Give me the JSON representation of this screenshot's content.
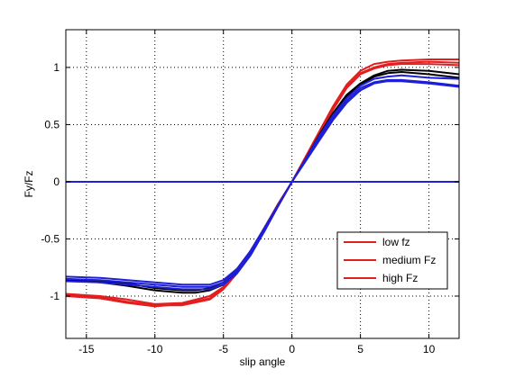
{
  "chart_data": {
    "type": "line",
    "title": "",
    "xlabel": "slip angle",
    "ylabel": "Fy/Fz",
    "xlim": [
      -16.5,
      12.2
    ],
    "ylim": [
      -1.37,
      1.33
    ],
    "xticks": [
      -15,
      -10,
      -5,
      0,
      5,
      10
    ],
    "yticks": [
      -1,
      -0.5,
      0,
      0.5,
      1
    ],
    "xtick_labels": [
      "-15",
      "-10",
      "-5",
      "0",
      "5",
      "10"
    ],
    "ytick_labels": [
      "-1",
      "-0.5",
      "0",
      "0.5",
      "1"
    ],
    "grid": true,
    "legend_position": "bottom-right",
    "legend": [
      {
        "label": "low fz",
        "color": "#e21e1e"
      },
      {
        "label": "medium Fz",
        "color": "#e21e1e"
      },
      {
        "label": "high Fz",
        "color": "#e21e1e"
      }
    ],
    "series": [
      {
        "color": "#e21e1e",
        "x": [
          -16.5,
          -14,
          -12,
          -10,
          -8,
          -6,
          -5,
          -4,
          -3,
          -2,
          -1,
          0,
          1,
          2,
          3,
          4,
          5,
          6,
          7,
          8,
          10,
          12.2
        ],
        "y": [
          -0.99,
          -1.01,
          -1.05,
          -1.08,
          -1.08,
          -1.03,
          -0.94,
          -0.8,
          -0.62,
          -0.42,
          -0.2,
          0.0,
          0.22,
          0.44,
          0.66,
          0.85,
          0.97,
          1.03,
          1.05,
          1.06,
          1.07,
          1.07
        ]
      },
      {
        "color": "#e21e1e",
        "x": [
          -16.5,
          -14,
          -12,
          -10,
          -8,
          -6,
          -5,
          -4,
          -3,
          -2,
          -1,
          0,
          1,
          2,
          3,
          4,
          5,
          6,
          7,
          8,
          10,
          12.2
        ],
        "y": [
          -1.0,
          -1.02,
          -1.06,
          -1.09,
          -1.07,
          -1.02,
          -0.93,
          -0.79,
          -0.61,
          -0.41,
          -0.2,
          0.0,
          0.21,
          0.43,
          0.64,
          0.83,
          0.95,
          1.0,
          1.03,
          1.04,
          1.05,
          1.04
        ]
      },
      {
        "color": "#e21e1e",
        "x": [
          -16.5,
          -14,
          -12,
          -10,
          -8,
          -6,
          -5,
          -4,
          -3,
          -2,
          -1,
          0,
          1,
          2,
          3,
          4,
          5,
          6,
          7,
          8,
          10,
          12.2
        ],
        "y": [
          -0.98,
          -1.0,
          -1.03,
          -1.07,
          -1.06,
          -1.0,
          -0.92,
          -0.78,
          -0.6,
          -0.4,
          -0.19,
          0.0,
          0.2,
          0.42,
          0.63,
          0.82,
          0.94,
          0.99,
          1.02,
          1.03,
          1.03,
          1.02
        ]
      },
      {
        "color": "#000000",
        "x": [
          -16.5,
          -14,
          -12,
          -10,
          -8,
          -7,
          -6,
          -5,
          -4,
          -3,
          -2,
          -1,
          0,
          1,
          2,
          3,
          4,
          5,
          6,
          7,
          8,
          10,
          12.2
        ],
        "y": [
          -0.86,
          -0.88,
          -0.91,
          -0.95,
          -0.97,
          -0.97,
          -0.95,
          -0.9,
          -0.79,
          -0.63,
          -0.43,
          -0.21,
          0.0,
          0.2,
          0.41,
          0.6,
          0.76,
          0.86,
          0.93,
          0.97,
          0.98,
          0.97,
          0.94
        ]
      },
      {
        "color": "#000000",
        "x": [
          -16.5,
          -14,
          -12,
          -10,
          -8,
          -7,
          -6,
          -5,
          -4,
          -3,
          -2,
          -1,
          0,
          1,
          2,
          3,
          4,
          5,
          6,
          7,
          8,
          10,
          12.2
        ],
        "y": [
          -0.85,
          -0.87,
          -0.89,
          -0.93,
          -0.95,
          -0.95,
          -0.93,
          -0.88,
          -0.77,
          -0.61,
          -0.42,
          -0.21,
          0.0,
          0.2,
          0.4,
          0.59,
          0.75,
          0.85,
          0.92,
          0.95,
          0.96,
          0.94,
          0.91
        ]
      },
      {
        "color": "#1f1fd8",
        "x": [
          -16.5,
          -14,
          -12,
          -10,
          -8,
          -6,
          -5,
          -4,
          -3,
          -2,
          -1,
          0,
          1,
          2,
          3,
          4,
          5,
          6,
          7,
          8,
          10,
          12.2
        ],
        "y": [
          -0.83,
          -0.84,
          -0.86,
          -0.88,
          -0.9,
          -0.9,
          -0.86,
          -0.76,
          -0.6,
          -0.4,
          -0.2,
          0.0,
          0.19,
          0.38,
          0.56,
          0.71,
          0.82,
          0.87,
          0.89,
          0.89,
          0.87,
          0.84
        ]
      },
      {
        "color": "#1f1fd8",
        "x": [
          -16.5,
          -14,
          -12,
          -10,
          -8,
          -6,
          -5,
          -4,
          -3,
          -2,
          -1,
          0,
          1,
          2,
          3,
          4,
          5,
          6,
          7,
          8,
          10,
          12.2
        ],
        "y": [
          -0.85,
          -0.86,
          -0.88,
          -0.9,
          -0.92,
          -0.92,
          -0.88,
          -0.78,
          -0.62,
          -0.41,
          -0.2,
          0.0,
          0.18,
          0.36,
          0.54,
          0.69,
          0.8,
          0.86,
          0.88,
          0.88,
          0.86,
          0.83
        ]
      },
      {
        "color": "#1f1fd8",
        "x": [
          -16.5,
          -14,
          -12,
          -10,
          -8,
          -6,
          -5,
          -4,
          -3,
          -2,
          -1,
          0,
          1,
          2,
          3,
          4,
          5,
          6,
          7,
          8,
          10,
          12.2
        ],
        "y": [
          -0.87,
          -0.88,
          -0.9,
          -0.92,
          -0.94,
          -0.94,
          -0.9,
          -0.8,
          -0.64,
          -0.43,
          -0.21,
          0.0,
          0.2,
          0.4,
          0.58,
          0.73,
          0.84,
          0.9,
          0.92,
          0.93,
          0.91,
          0.9
        ]
      },
      {
        "color": "#1f1fd8",
        "x": [
          -16.5,
          12.2
        ],
        "y": [
          0,
          0
        ]
      }
    ]
  }
}
